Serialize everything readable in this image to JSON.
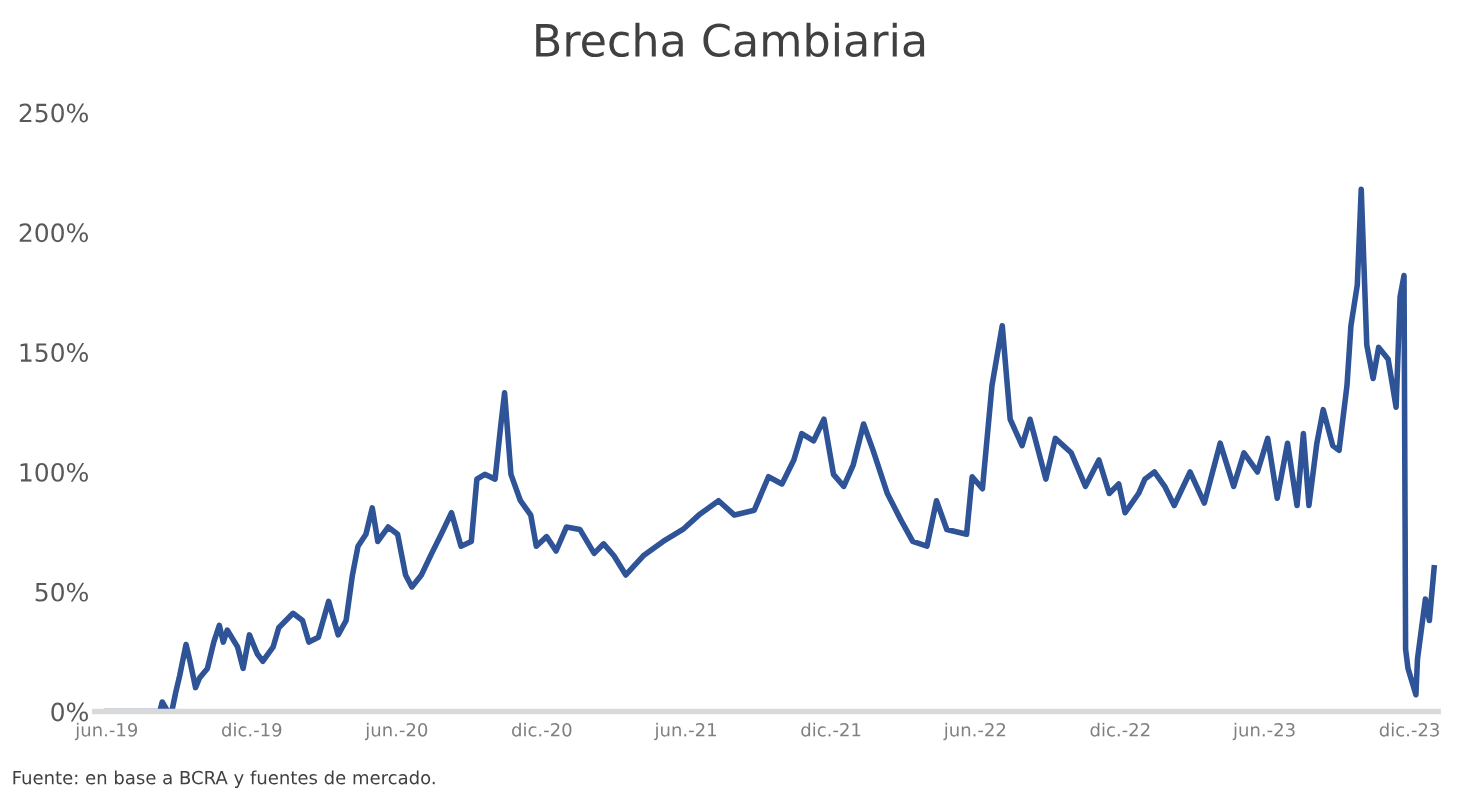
{
  "chart_data": {
    "type": "line",
    "title": "Brecha Cambiaria",
    "annotations": [
      "Fuente: en base a BCRA y fuentes de mercado."
    ],
    "x": [
      "2019-06-01",
      "2019-08-07",
      "2019-08-10",
      "2019-08-17",
      "2019-08-22",
      "2019-08-27",
      "2019-09-01",
      "2019-09-09",
      "2019-09-14",
      "2019-09-21",
      "2019-09-26",
      "2019-10-06",
      "2019-10-14",
      "2019-10-21",
      "2019-10-26",
      "2019-10-31",
      "2019-11-13",
      "2019-11-20",
      "2019-11-28",
      "2019-12-08",
      "2019-12-15",
      "2019-12-28",
      "2020-01-04",
      "2020-01-22",
      "2020-02-03",
      "2020-02-11",
      "2020-02-23",
      "2020-03-07",
      "2020-03-19",
      "2020-03-29",
      "2020-04-06",
      "2020-04-13",
      "2020-04-23",
      "2020-05-01",
      "2020-05-08",
      "2020-05-21",
      "2020-06-02",
      "2020-06-12",
      "2020-06-20",
      "2020-07-02",
      "2020-07-15",
      "2020-07-27",
      "2020-08-09",
      "2020-08-21",
      "2020-09-03",
      "2020-09-10",
      "2020-09-20",
      "2020-10-03",
      "2020-10-10",
      "2020-10-15",
      "2020-10-23",
      "2020-11-04",
      "2020-11-17",
      "2020-11-24",
      "2020-12-07",
      "2020-12-19",
      "2021-01-01",
      "2021-01-18",
      "2021-02-05",
      "2021-02-17",
      "2021-03-02",
      "2021-03-17",
      "2021-04-08",
      "2021-05-03",
      "2021-05-28",
      "2021-06-17",
      "2021-07-12",
      "2021-08-01",
      "2021-08-26",
      "2021-09-13",
      "2021-09-30",
      "2021-10-15",
      "2021-10-25",
      "2021-11-09",
      "2021-11-22",
      "2021-12-04",
      "2021-12-17",
      "2021-12-29",
      "2022-01-11",
      "2022-01-23",
      "2022-02-10",
      "2022-02-27",
      "2022-03-14",
      "2022-04-01",
      "2022-04-13",
      "2022-04-26",
      "2022-05-21",
      "2022-05-28",
      "2022-06-10",
      "2022-06-22",
      "2022-07-05",
      "2022-07-15",
      "2022-07-30",
      "2022-08-09",
      "2022-08-29",
      "2022-09-10",
      "2022-09-30",
      "2022-10-18",
      "2022-11-04",
      "2022-11-17",
      "2022-11-29",
      "2022-12-07",
      "2022-12-24",
      "2023-01-01",
      "2023-01-13",
      "2023-01-26",
      "2023-02-07",
      "2023-02-27",
      "2023-03-17",
      "2023-04-06",
      "2023-04-23",
      "2023-05-06",
      "2023-05-23",
      "2023-06-05",
      "2023-06-17",
      "2023-06-30",
      "2023-07-12",
      "2023-07-20",
      "2023-07-27",
      "2023-08-06",
      "2023-08-14",
      "2023-08-26",
      "2023-09-03",
      "2023-09-13",
      "2023-09-18",
      "2023-09-26",
      "2023-10-01",
      "2023-10-08",
      "2023-10-16",
      "2023-10-23",
      "2023-11-04",
      "2023-11-14",
      "2023-11-19",
      "2023-11-24",
      "2023-11-26",
      "2023-11-29",
      "2023-12-09",
      "2023-12-11",
      "2023-12-21",
      "2023-12-26",
      "2024-01-01"
    ],
    "series": [
      {
        "color": "#2e5396",
        "values": [
          0,
          0,
          4,
          0,
          0,
          8,
          15,
          28,
          21,
          10,
          14,
          18,
          29,
          36,
          29,
          34,
          27,
          18,
          32,
          24,
          21,
          27,
          35,
          41,
          38,
          29,
          31,
          46,
          32,
          38,
          57,
          69,
          74,
          85,
          71,
          77,
          74,
          57,
          52,
          57,
          66,
          74,
          83,
          69,
          71,
          97,
          99,
          97,
          119,
          133,
          99,
          88,
          82,
          69,
          73,
          67,
          77,
          76,
          66,
          70,
          65,
          57,
          65,
          71,
          76,
          82,
          88,
          82,
          84,
          98,
          95,
          105,
          116,
          113,
          122,
          99,
          94,
          103,
          120,
          109,
          91,
          80,
          71,
          69,
          88,
          76,
          74,
          98,
          93,
          136,
          161,
          122,
          111,
          122,
          97,
          114,
          108,
          94,
          105,
          91,
          95,
          83,
          91,
          97,
          100,
          94,
          86,
          100,
          87,
          112,
          94,
          108,
          100,
          114,
          89,
          112,
          86,
          116,
          86,
          112,
          126,
          111,
          109,
          136,
          161,
          178,
          218,
          153,
          139,
          152,
          147,
          127,
          173,
          182,
          26,
          18,
          7,
          22,
          47,
          38,
          60
        ]
      }
    ],
    "xlim": [
      "2019-05-17",
      "2024-01-06"
    ],
    "xticks": [
      {
        "value": "2019-06-01",
        "label": "jun.-19"
      },
      {
        "value": "2019-12-01",
        "label": "dic.-19"
      },
      {
        "value": "2020-06-01",
        "label": "jun.-20"
      },
      {
        "value": "2020-12-01",
        "label": "dic.-20"
      },
      {
        "value": "2021-06-01",
        "label": "jun.-21"
      },
      {
        "value": "2021-12-01",
        "label": "dic.-21"
      },
      {
        "value": "2022-06-01",
        "label": "jun.-22"
      },
      {
        "value": "2022-12-01",
        "label": "dic.-22"
      },
      {
        "value": "2023-06-01",
        "label": "jun.-23"
      },
      {
        "value": "2023-12-01",
        "label": "dic.-23"
      }
    ],
    "ylim": [
      0,
      250
    ],
    "yticks": [
      {
        "value": 0,
        "label": "0%"
      },
      {
        "value": 50,
        "label": "50%"
      },
      {
        "value": 100,
        "label": "100%"
      },
      {
        "value": 150,
        "label": "150%"
      },
      {
        "value": 200,
        "label": "200%"
      },
      {
        "value": 250,
        "label": "250%"
      }
    ],
    "marker": "none",
    "line_style": "solid"
  }
}
